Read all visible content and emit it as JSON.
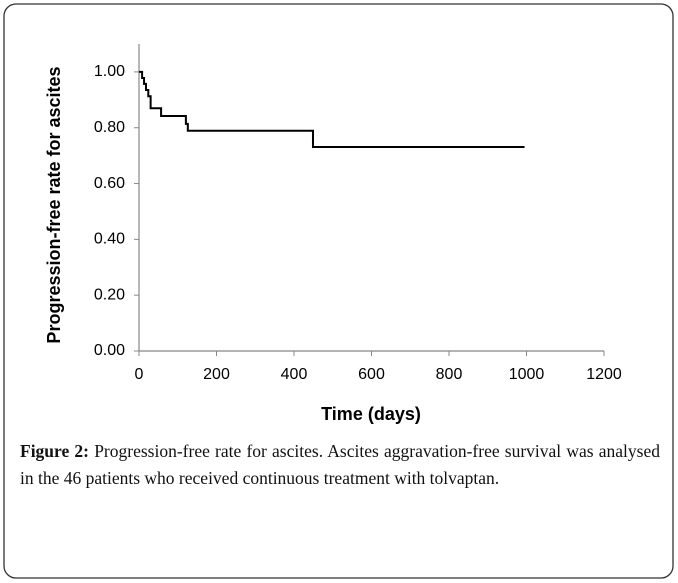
{
  "chart_data": {
    "type": "line",
    "step": "post",
    "color": "#000000",
    "ylabel": "Progression-free rate for ascites",
    "xlabel": "Time (days)",
    "x": [
      0,
      8,
      13,
      18,
      24,
      30,
      57,
      121,
      126,
      449,
      995
    ],
    "values": [
      1.0,
      0.978,
      0.957,
      0.935,
      0.913,
      0.87,
      0.842,
      0.814,
      0.789,
      0.731,
      0.731
    ],
    "xlim": [
      0,
      1200
    ],
    "xticks": [
      0,
      200,
      400,
      600,
      800,
      1000,
      1200
    ],
    "ylim": [
      0,
      1.1
    ],
    "yticks": [
      {
        "value": 0,
        "label": "0.00"
      },
      {
        "value": 0.2,
        "label": "0.20"
      },
      {
        "value": 0.4,
        "label": "0.40"
      },
      {
        "value": 0.6,
        "label": "0.60"
      },
      {
        "value": 0.8,
        "label": "0.80"
      },
      {
        "value": 1,
        "label": "1.00"
      }
    ]
  },
  "caption": {
    "label": "Figure 2:",
    "text": "Progression-free rate for ascites. Ascites aggravation-free survival was analysed in the 46 patients who received continuous treatment with tolvaptan."
  }
}
